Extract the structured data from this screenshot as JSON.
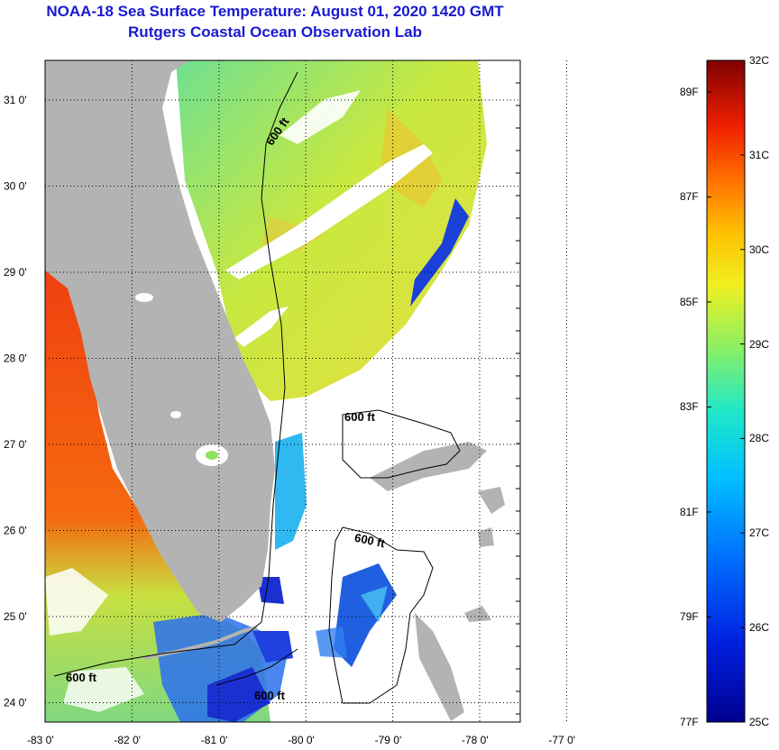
{
  "title": "NOAA-18 Sea Surface Temperature:  August 01, 2020 1420 GMT",
  "subtitle": "Rutgers Coastal Ocean Observation Lab",
  "map": {
    "lat_labels": [
      "31 0'",
      "30 0'",
      "29 0'",
      "28 0'",
      "27 0'",
      "26 0'",
      "25 0'",
      "24 0'"
    ],
    "lon_labels": [
      "-83 0'",
      "-82 0'",
      "-81 0'",
      "-80 0'",
      "-79 0'",
      "-78 0'",
      "-77 0'"
    ],
    "contour_labels": [
      "600 ft",
      "600 ft",
      "600 ft",
      "600 ft",
      "600 ft"
    ],
    "colors": {
      "land": "#b3b3b3",
      "cloud": "#ffffff",
      "warm_gulf": "#f05a10",
      "atlantic": "#9ee055",
      "cool": "#1530d0"
    }
  },
  "colorbar": {
    "fahrenheit_labels": [
      "89F",
      "87F",
      "85F",
      "83F",
      "81F",
      "79F",
      "77F"
    ],
    "celsius_labels": [
      "32C",
      "31C",
      "30C",
      "29C",
      "28C",
      "27C",
      "26C",
      "25C"
    ],
    "range_c": [
      25,
      32
    ],
    "range_f": [
      77,
      89.6
    ]
  }
}
